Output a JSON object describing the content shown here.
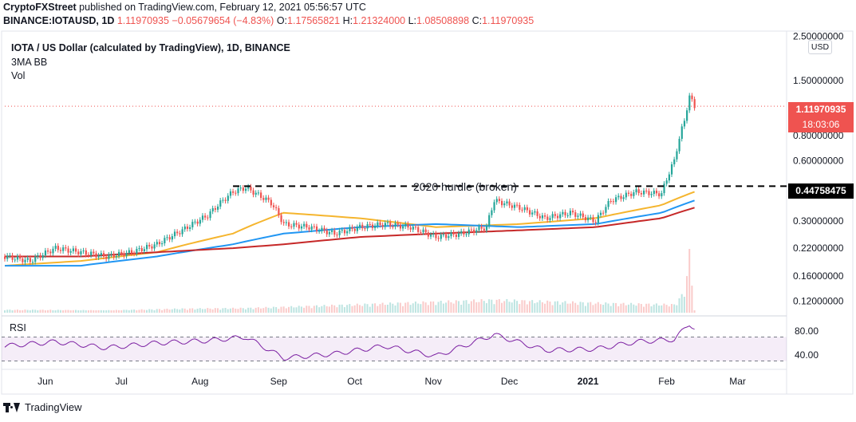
{
  "header": {
    "line1_user": "CryptoFXStreet",
    "line1_rest": " published on TradingView.com, February 12, 2021 05:56:57 UTC",
    "line2_symbol": "BINANCE:IOTAUSD, 1D",
    "line2_price": "1.11970935",
    "line2_change": "−0.05679654 (−4.83%)",
    "line2_o_label": "O:",
    "line2_o": "1.17565821",
    "line2_h_label": "H:",
    "line2_h": "1.21324000",
    "line2_l_label": "L:",
    "line2_l": "1.08508898",
    "line2_c_label": "C:",
    "line2_c": "1.11970935"
  },
  "legend": {
    "title": "IOTA / US Dollar (calculated by TradingView), 1D, BINANCE",
    "indicator": "3MA BB",
    "volume": "Vol",
    "rsi": "RSI"
  },
  "axis": {
    "currency_button": "USD",
    "last_price_tag": "1.11970935",
    "countdown_tag": "18:03:06",
    "hurdle_tag": "0.44758475",
    "colors": {
      "price_tag": "#ef5350",
      "hurdle_tag": "#000000",
      "up": "#26a69a",
      "down": "#ef5350"
    }
  },
  "annotation": {
    "hurdle_label": "2020 hurdle (broken)"
  },
  "footer": {
    "brand": "TradingView"
  },
  "chart_data": {
    "type": "candlestick",
    "price_scale": "log",
    "price_ticks": [
      "2.50000000",
      "1.50000000",
      "0.80000000",
      "0.60000000",
      "0.30000000",
      "0.22000000",
      "0.16000000",
      "0.12000000"
    ],
    "price_tick_values": [
      2.5,
      1.5,
      0.8,
      0.6,
      0.3,
      0.22,
      0.16,
      0.12
    ],
    "rsi_ticks": [
      "80.00",
      "40.00"
    ],
    "rsi_tick_values": [
      80,
      40
    ],
    "rsi_bands": [
      70,
      30
    ],
    "x_labels": [
      "Jun",
      "Jul",
      "Aug",
      "Sep",
      "Oct",
      "Nov",
      "Dec",
      "2021",
      "Feb",
      "Mar"
    ],
    "x_label_dates": [
      "2020-06-01",
      "2020-07-01",
      "2020-08-01",
      "2020-09-01",
      "2020-10-01",
      "2020-11-01",
      "2020-12-01",
      "2021-01-01",
      "2021-02-01",
      "2021-03-01"
    ],
    "hurdle_level": 0.44758475,
    "last_close": 1.11970935,
    "series": [
      {
        "name": "close",
        "dates": [
          "2020-05-16",
          "2020-05-26",
          "2020-06-05",
          "2020-06-15",
          "2020-06-25",
          "2020-07-05",
          "2020-07-15",
          "2020-07-25",
          "2020-08-04",
          "2020-08-14",
          "2020-08-19",
          "2020-08-29",
          "2020-09-03",
          "2020-09-13",
          "2020-09-23",
          "2020-10-03",
          "2020-10-13",
          "2020-10-23",
          "2020-11-02",
          "2020-11-12",
          "2020-11-22",
          "2020-11-25",
          "2020-12-05",
          "2020-12-15",
          "2020-12-25",
          "2021-01-04",
          "2021-01-10",
          "2021-01-20",
          "2021-01-30",
          "2021-02-04",
          "2021-02-08",
          "2021-02-10",
          "2021-02-12"
        ],
        "values": [
          0.2,
          0.19,
          0.22,
          0.21,
          0.2,
          0.21,
          0.23,
          0.27,
          0.32,
          0.42,
          0.44,
          0.37,
          0.29,
          0.28,
          0.26,
          0.28,
          0.29,
          0.28,
          0.25,
          0.26,
          0.28,
          0.38,
          0.35,
          0.31,
          0.33,
          0.3,
          0.38,
          0.42,
          0.41,
          0.6,
          0.95,
          1.25,
          1.12
        ]
      },
      {
        "name": "MA (yellow)",
        "color": "#f5b52e",
        "dates": [
          "2020-05-16",
          "2020-06-15",
          "2020-07-15",
          "2020-08-14",
          "2020-09-03",
          "2020-10-03",
          "2020-11-02",
          "2020-12-05",
          "2021-01-04",
          "2021-01-30",
          "2021-02-12"
        ],
        "values": [
          0.18,
          0.19,
          0.21,
          0.26,
          0.33,
          0.31,
          0.28,
          0.29,
          0.31,
          0.36,
          0.42
        ]
      },
      {
        "name": "MA (blue)",
        "color": "#2196f3",
        "dates": [
          "2020-05-16",
          "2020-06-15",
          "2020-07-15",
          "2020-08-14",
          "2020-09-03",
          "2020-10-03",
          "2020-11-02",
          "2020-12-05",
          "2021-01-04",
          "2021-01-30",
          "2021-02-12"
        ],
        "values": [
          0.18,
          0.18,
          0.2,
          0.23,
          0.26,
          0.28,
          0.29,
          0.28,
          0.29,
          0.33,
          0.38
        ]
      },
      {
        "name": "MA (red)",
        "color": "#c62828",
        "dates": [
          "2020-05-16",
          "2020-06-15",
          "2020-07-15",
          "2020-08-14",
          "2020-09-03",
          "2020-10-03",
          "2020-11-02",
          "2020-12-05",
          "2021-01-04",
          "2021-01-30",
          "2021-02-12"
        ],
        "values": [
          0.2,
          0.2,
          0.21,
          0.22,
          0.23,
          0.25,
          0.26,
          0.27,
          0.28,
          0.31,
          0.35
        ]
      },
      {
        "name": "RSI",
        "color": "#7b1fa2",
        "dates": [
          "2020-05-16",
          "2020-06-05",
          "2020-06-25",
          "2020-07-15",
          "2020-08-04",
          "2020-08-19",
          "2020-09-03",
          "2020-09-23",
          "2020-10-13",
          "2020-11-02",
          "2020-11-25",
          "2020-12-15",
          "2021-01-04",
          "2021-01-20",
          "2021-02-04",
          "2021-02-10",
          "2021-02-12"
        ],
        "values": [
          55,
          62,
          52,
          60,
          64,
          70,
          35,
          42,
          55,
          38,
          74,
          48,
          50,
          62,
          66,
          92,
          85
        ]
      }
    ],
    "volume": {
      "dates": [
        "2020-05-26",
        "2020-06-25",
        "2020-07-25",
        "2020-08-19",
        "2020-09-03",
        "2020-11-25",
        "2021-01-10",
        "2021-02-04",
        "2021-02-08",
        "2021-02-10",
        "2021-02-12"
      ],
      "values": [
        0.05,
        0.04,
        0.07,
        0.08,
        0.1,
        0.22,
        0.16,
        0.14,
        0.35,
        1.0,
        0.05
      ]
    }
  }
}
